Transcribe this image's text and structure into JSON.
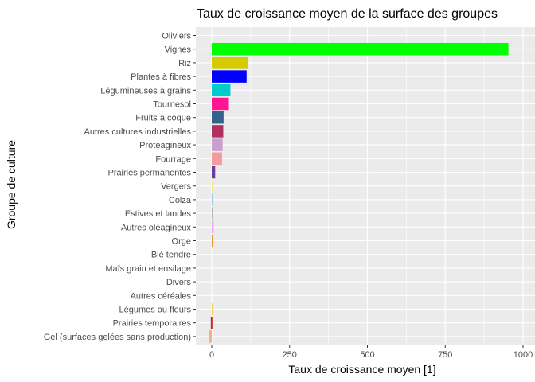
{
  "chart_data": {
    "type": "bar",
    "orientation": "horizontal",
    "title": "Taux de croissance moyen de la surface des groupes",
    "xlabel": "Taux de croissance moyen [1]",
    "ylabel": "Groupe de culture",
    "xlim": [
      -15,
      1000
    ],
    "xticks": [
      0,
      250,
      500,
      750,
      1000
    ],
    "xtick_labels": [
      "0",
      "250",
      "500",
      "750",
      "1000"
    ],
    "grid": true,
    "categories": [
      "Oliviers",
      "Vignes",
      "Riz",
      "Plantes à fibres",
      "Légumineuses à grains",
      "Tournesol",
      "Fruits à coque",
      "Autres cultures industrielles",
      "Protéagineux",
      "Fourrage",
      "Prairies permanentes",
      "Vergers",
      "Colza",
      "Estives et landes",
      "Autres oléagineux",
      "Orge",
      "Blé tendre",
      "Maïs grain et ensilage",
      "Divers",
      "Autres céréales",
      "Légumes ou fleurs",
      "Prairies temporaires",
      "Gel (surfaces gelées sans production)"
    ],
    "values": [
      0,
      953,
      117,
      112,
      60,
      55,
      38,
      37,
      35,
      33,
      11,
      3,
      5,
      4,
      6,
      3,
      0,
      0,
      0,
      0,
      2,
      -3,
      -10
    ],
    "colors": [
      "#00ff00",
      "#00ff00",
      "#d4cc00",
      "#0000ff",
      "#00cccc",
      "#ff1493",
      "#33628a",
      "#b03060",
      "#c8a0d0",
      "#f49b9b",
      "#6a3d9a",
      "#f0e68c",
      "#9ecae1",
      "#b5b5b5",
      "#e6a8e6",
      "#e6952b",
      "#f2b3a6",
      "#d9d9d9",
      "#c7a2d3",
      "#bfb6e2",
      "#f0d264",
      "#cc2929",
      "#f4b27a"
    ]
  }
}
